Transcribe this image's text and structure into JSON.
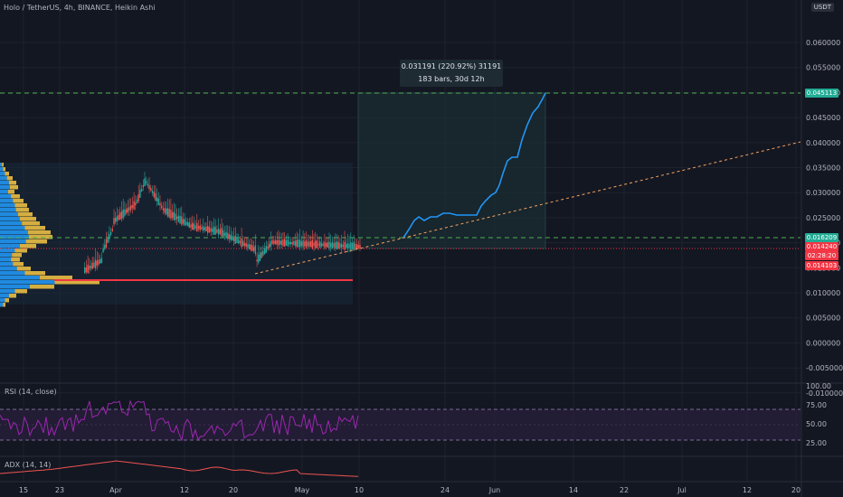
{
  "header": {
    "symbol_title": "Holo / TetherUS, 4h, BINANCE, Heikin Ashi",
    "currency": "USDT"
  },
  "measure": {
    "line1": "0.031191 (220.92%) 31191",
    "line2": "183 bars, 30d 12h"
  },
  "price_axis": {
    "ticks": [
      "0.060000",
      "0.055000",
      "0.050000",
      "0.045000",
      "0.040000",
      "0.035000",
      "0.030000",
      "0.025000",
      "0.020000",
      "0.015000",
      "0.010000",
      "0.005000",
      "0.000000",
      "-0.005000",
      "-0.010000"
    ],
    "tags": {
      "top_target": "0.045113",
      "mid_level": "0.016209",
      "current": "0.014240",
      "countdown": "02:28:20",
      "low": "0.014103"
    }
  },
  "rsi": {
    "title": "RSI (14, close)",
    "ticks": [
      "100.00",
      "75.00",
      "50.00",
      "25.00"
    ]
  },
  "adx": {
    "title": "ADX (14, 14)"
  },
  "time_axis": {
    "labels": [
      "15",
      "23",
      "Apr",
      "12",
      "20",
      "May",
      "10",
      "24",
      "Jun",
      "14",
      "22",
      "Jul",
      "12",
      "20"
    ]
  },
  "colors": {
    "background": "#131722",
    "bull": "#26a69a",
    "bear": "#ef5350",
    "projection": "#2196f3",
    "rsi_line": "#9c27b0",
    "volume_profile_up": "#2196f3",
    "volume_profile_down": "#f7c744",
    "support": "#f23645"
  }
}
